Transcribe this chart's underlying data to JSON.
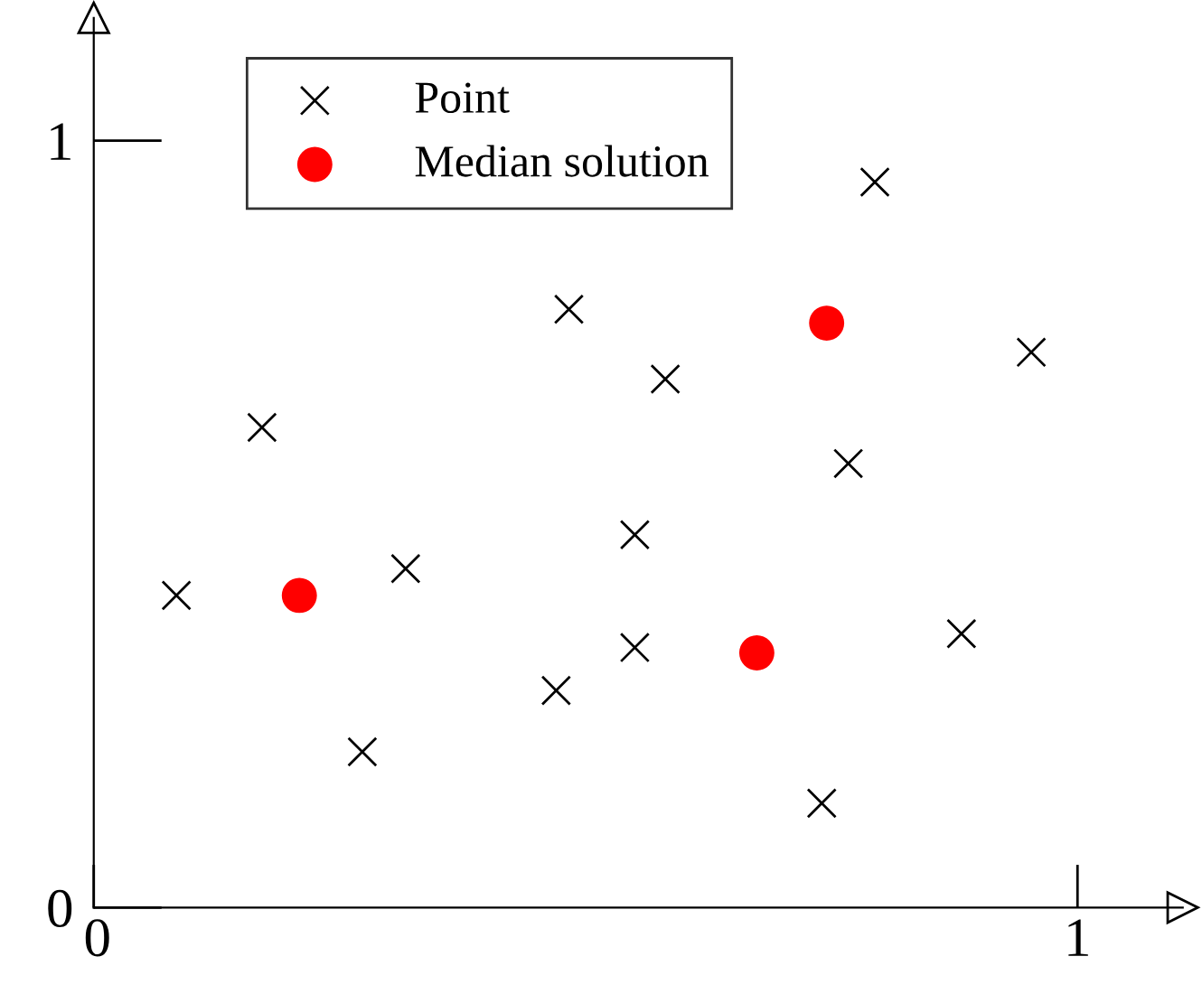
{
  "chart_data": {
    "type": "scatter",
    "xlim": [
      0,
      1.107
    ],
    "ylim": [
      0,
      1.16
    ],
    "xticks": [
      {
        "value": 0,
        "label": "0"
      },
      1
    ],
    "yticks": [
      {
        "value": 0,
        "label": "0"
      },
      1
    ],
    "grid": false,
    "legend": "top left",
    "series": [
      {
        "name": "Point",
        "color": "#000000",
        "marker": "cross",
        "x": [
          0.084,
          0.171,
          0.273,
          0.317,
          0.47,
          0.483,
          0.55,
          0.55,
          0.581,
          0.74,
          0.767,
          0.794,
          0.882,
          0.953
        ],
        "values": [
          0.407,
          0.626,
          0.203,
          0.442,
          0.283,
          0.78,
          0.486,
          0.339,
          0.689,
          0.136,
          0.579,
          0.946,
          0.357,
          0.724
        ]
      },
      {
        "name": "Median solution",
        "color": "#ff0000",
        "marker": "circle",
        "x": [
          0.209,
          0.745,
          0.674
        ],
        "values": [
          0.407,
          0.762,
          0.332
        ]
      }
    ]
  }
}
